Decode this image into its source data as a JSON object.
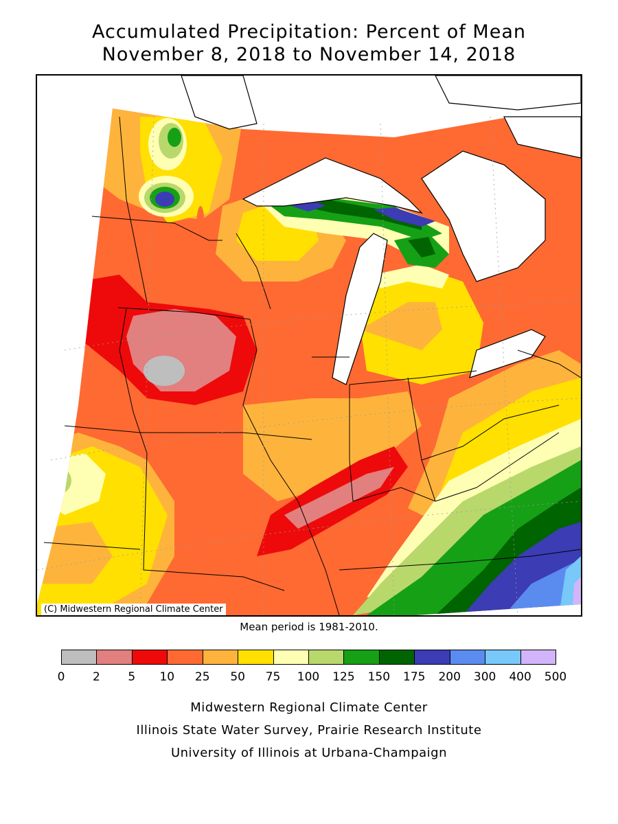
{
  "title_line1": "Accumulated Precipitation: Percent of Mean",
  "title_line2": "November 8, 2018 to November 14, 2018",
  "copyright": "(C) Midwestern Regional Climate Center",
  "mean_period": "Mean period is 1981-2010.",
  "legend": {
    "colors": [
      "#bebebe",
      "#e27f7f",
      "#ee0a0a",
      "#fe6a32",
      "#feb43c",
      "#ffe000",
      "#ffffb4",
      "#b8d86c",
      "#16a016",
      "#006400",
      "#3c3cb4",
      "#5a8cf0",
      "#78c8fa",
      "#d2b4fa"
    ],
    "ticks": [
      "0",
      "2",
      "5",
      "10",
      "25",
      "50",
      "75",
      "100",
      "125",
      "150",
      "175",
      "200",
      "300",
      "400",
      "500"
    ]
  },
  "credits": {
    "line1": "Midwestern Regional Climate Center",
    "line2": "Illinois State Water Survey, Prairie Research Institute",
    "line3": "University of Illinois at Urbana-Champaign"
  }
}
